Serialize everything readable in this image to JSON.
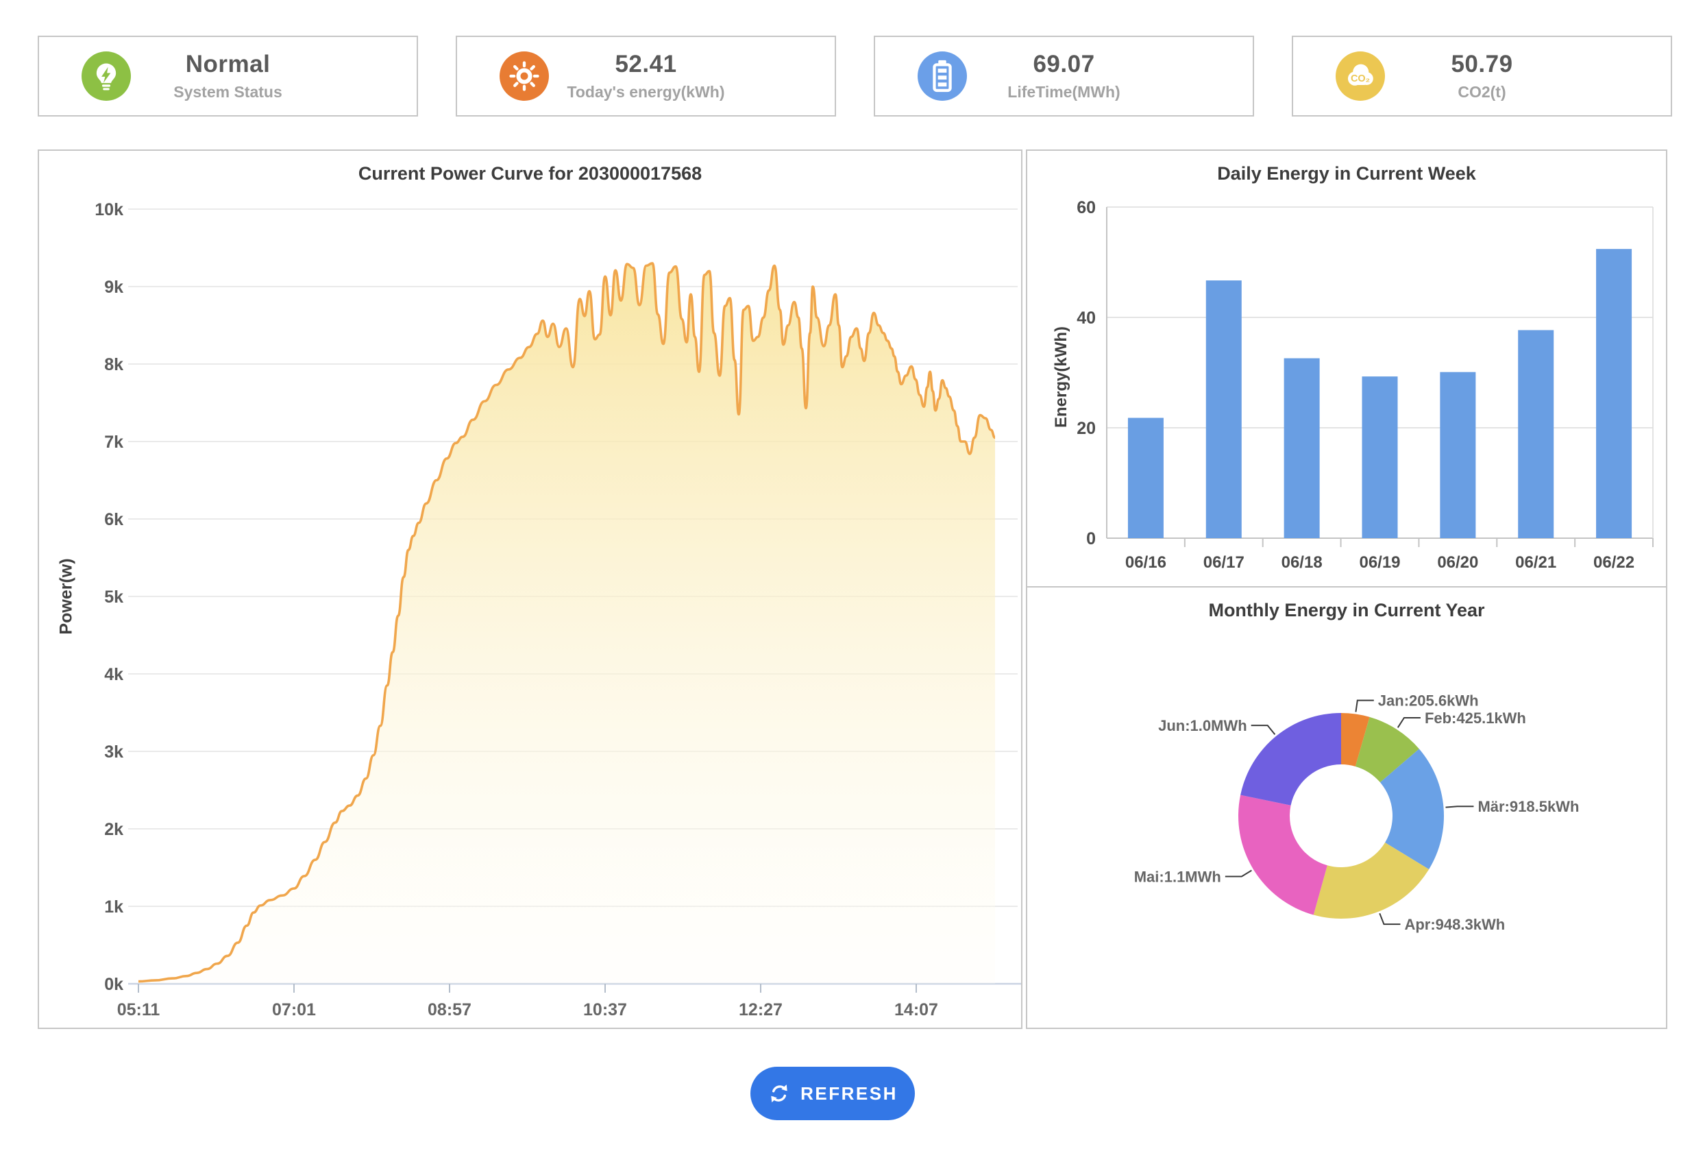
{
  "cards": [
    {
      "value": "Normal",
      "label": "System Status",
      "icon": "lightbulb-bolt-icon",
      "color": "#8dc044"
    },
    {
      "value": "52.41",
      "label": "Today's energy(kWh)",
      "icon": "sun-icon",
      "color": "#e87c33"
    },
    {
      "value": "69.07",
      "label": "LifeTime(MWh)",
      "icon": "battery-icon",
      "color": "#6b9fe8"
    },
    {
      "value": "50.79",
      "label": "CO2(t)",
      "icon": "co2-cloud-icon",
      "color": "#ecc752",
      "icon_text": "CO₂"
    }
  ],
  "refresh_button": {
    "label": "REFRESH",
    "color": "#3377e6"
  },
  "chart_data": [
    {
      "type": "area",
      "title": "Current Power Curve for 203000017568",
      "ylabel": "Power(w)",
      "x_ticks": [
        "05:11",
        "07:01",
        "08:57",
        "10:37",
        "12:27",
        "14:07"
      ],
      "y_ticks": [
        "0k",
        "1k",
        "2k",
        "3k",
        "4k",
        "5k",
        "6k",
        "7k",
        "8k",
        "9k",
        "10k"
      ],
      "ylim": [
        0,
        10000
      ],
      "x_range": [
        "05:11",
        "15:33"
      ],
      "line_color": "#f0a64c",
      "fill_top": "rgba(248,228,158,0.95)",
      "fill_mid": "rgba(252,243,210,0.6)",
      "fill_bottom": "rgba(255,253,246,0.25)",
      "grid": true,
      "points": [
        [
          0,
          30
        ],
        [
          0.0195,
          45
        ],
        [
          0.039,
          70
        ],
        [
          0.0546,
          100
        ],
        [
          0.0663,
          140
        ],
        [
          0.0779,
          190
        ],
        [
          0.0896,
          260
        ],
        [
          0.1013,
          360
        ],
        [
          0.113,
          530
        ],
        [
          0.1232,
          750
        ],
        [
          0.131,
          920
        ],
        [
          0.1387,
          1010
        ],
        [
          0.1497,
          1080
        ],
        [
          0.1637,
          1140
        ],
        [
          0.1769,
          1230
        ],
        [
          0.1886,
          1390
        ],
        [
          0.2011,
          1600
        ],
        [
          0.212,
          1830
        ],
        [
          0.2237,
          2080
        ],
        [
          0.2315,
          2230
        ],
        [
          0.2401,
          2300
        ],
        [
          0.2494,
          2430
        ],
        [
          0.2588,
          2650
        ],
        [
          0.2673,
          2950
        ],
        [
          0.2751,
          3330
        ],
        [
          0.2829,
          3850
        ],
        [
          0.2892,
          4280
        ],
        [
          0.2954,
          4750
        ],
        [
          0.3016,
          5250
        ],
        [
          0.3071,
          5600
        ],
        [
          0.3125,
          5780
        ],
        [
          0.3188,
          5950
        ],
        [
          0.3273,
          6200
        ],
        [
          0.339,
          6500
        ],
        [
          0.3507,
          6780
        ],
        [
          0.3609,
          6980
        ],
        [
          0.3687,
          7060
        ],
        [
          0.3804,
          7280
        ],
        [
          0.3936,
          7520
        ],
        [
          0.4069,
          7730
        ],
        [
          0.4209,
          7930
        ],
        [
          0.4341,
          8080
        ],
        [
          0.4443,
          8220
        ],
        [
          0.4536,
          8390
        ],
        [
          0.4599,
          8560
        ],
        [
          0.4653,
          8350
        ],
        [
          0.4716,
          8520
        ],
        [
          0.4786,
          8220
        ],
        [
          0.4864,
          8460
        ],
        [
          0.4942,
          7960
        ],
        [
          0.502,
          8840
        ],
        [
          0.5074,
          8620
        ],
        [
          0.5129,
          8940
        ],
        [
          0.5191,
          8320
        ],
        [
          0.5246,
          8380
        ],
        [
          0.5308,
          9130
        ],
        [
          0.537,
          8630
        ],
        [
          0.5425,
          9210
        ],
        [
          0.5487,
          8820
        ],
        [
          0.5557,
          9290
        ],
        [
          0.5628,
          9240
        ],
        [
          0.5698,
          8760
        ],
        [
          0.5776,
          9270
        ],
        [
          0.5846,
          9300
        ],
        [
          0.5908,
          8640
        ],
        [
          0.597,
          8260
        ],
        [
          0.604,
          9180
        ],
        [
          0.6111,
          9260
        ],
        [
          0.6181,
          8580
        ],
        [
          0.6235,
          8280
        ],
        [
          0.6282,
          8900
        ],
        [
          0.6329,
          8350
        ],
        [
          0.6376,
          7900
        ],
        [
          0.6438,
          9150
        ],
        [
          0.6493,
          9200
        ],
        [
          0.6547,
          8400
        ],
        [
          0.661,
          7850
        ],
        [
          0.6672,
          8750
        ],
        [
          0.6727,
          8850
        ],
        [
          0.6781,
          8050
        ],
        [
          0.6828,
          7350
        ],
        [
          0.6883,
          8700
        ],
        [
          0.6937,
          8750
        ],
        [
          0.6992,
          8300
        ],
        [
          0.7046,
          8350
        ],
        [
          0.7108,
          8600
        ],
        [
          0.7171,
          8950
        ],
        [
          0.7233,
          9270
        ],
        [
          0.7296,
          8700
        ],
        [
          0.7335,
          8250
        ],
        [
          0.7389,
          8500
        ],
        [
          0.7459,
          8800
        ],
        [
          0.7506,
          8600
        ],
        [
          0.7545,
          8200
        ],
        [
          0.7592,
          7430
        ],
        [
          0.7639,
          8400
        ],
        [
          0.767,
          9000
        ],
        [
          0.7717,
          8600
        ],
        [
          0.7795,
          8230
        ],
        [
          0.7857,
          8500
        ],
        [
          0.7927,
          8900
        ],
        [
          0.7966,
          8500
        ],
        [
          0.8005,
          7960
        ],
        [
          0.8052,
          8100
        ],
        [
          0.8106,
          8350
        ],
        [
          0.8169,
          8460
        ],
        [
          0.8215,
          8200
        ],
        [
          0.8254,
          8040
        ],
        [
          0.8309,
          8400
        ],
        [
          0.8363,
          8660
        ],
        [
          0.8418,
          8500
        ],
        [
          0.8473,
          8400
        ],
        [
          0.8519,
          8300
        ],
        [
          0.8566,
          8200
        ],
        [
          0.8597,
          8100
        ],
        [
          0.8636,
          7900
        ],
        [
          0.8675,
          7740
        ],
        [
          0.873,
          7850
        ],
        [
          0.8792,
          7970
        ],
        [
          0.8839,
          7800
        ],
        [
          0.8886,
          7600
        ],
        [
          0.8933,
          7450
        ],
        [
          0.8972,
          7700
        ],
        [
          0.9003,
          7900
        ],
        [
          0.9034,
          7650
        ],
        [
          0.9065,
          7400
        ],
        [
          0.9104,
          7550
        ],
        [
          0.9143,
          7790
        ],
        [
          0.9182,
          7690
        ],
        [
          0.9221,
          7580
        ],
        [
          0.9275,
          7400
        ],
        [
          0.9314,
          7200
        ],
        [
          0.9353,
          7000
        ],
        [
          0.94,
          7000
        ],
        [
          0.9455,
          6840
        ],
        [
          0.9509,
          7050
        ],
        [
          0.9572,
          7340
        ],
        [
          0.9634,
          7300
        ],
        [
          0.9696,
          7150
        ],
        [
          0.9743,
          7050
        ]
      ]
    },
    {
      "type": "bar",
      "title": "Daily Energy in Current Week",
      "ylabel": "Energy(kWh)",
      "categories": [
        "06/16",
        "06/17",
        "06/18",
        "06/19",
        "06/20",
        "06/21",
        "06/22"
      ],
      "values": [
        21.8,
        46.7,
        32.6,
        29.3,
        30.1,
        37.7,
        52.4
      ],
      "ylim": [
        0,
        60
      ],
      "y_ticks": [
        0,
        20,
        40,
        60
      ],
      "grid": true,
      "legend": false,
      "bar_color": "#699ee3"
    },
    {
      "type": "donut",
      "title": "Monthly Energy in Current Year",
      "slices": [
        {
          "label": "Jan:205.6kWh",
          "value_kwh": 205.6,
          "color": "#ec8434"
        },
        {
          "label": "Feb:425.1kWh",
          "value_kwh": 425.1,
          "color": "#9ac04e"
        },
        {
          "label": "Mär:918.5kWh",
          "value_kwh": 918.5,
          "color": "#6aa1e6"
        },
        {
          "label": "Apr:948.3kWh",
          "value_kwh": 948.3,
          "color": "#e3cf62"
        },
        {
          "label": "Mai:1.1MWh",
          "value_kwh": 1100,
          "color": "#e863c0"
        },
        {
          "label": "Jun:1.0MWh",
          "value_kwh": 1000,
          "color": "#6f5fe0"
        }
      ]
    }
  ]
}
